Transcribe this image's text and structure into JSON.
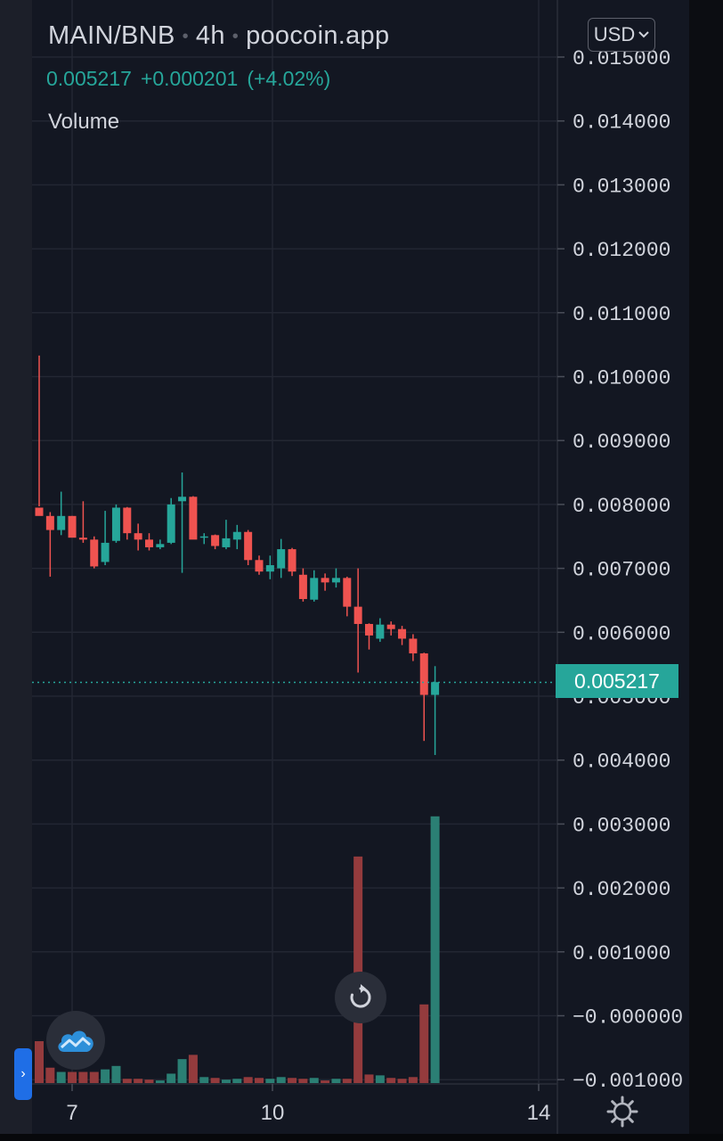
{
  "header": {
    "pair": "MAIN/BNB",
    "interval": "4h",
    "source": "poocoin.app",
    "last": "0.005217",
    "change": "+0.000201",
    "change_pct": "(+4.02%)",
    "indicator": "Volume"
  },
  "currency_button": "USD",
  "last_price_label": "0.005217",
  "colors": {
    "up": "#26a69a",
    "down": "#ef5350",
    "up_volume": "#2b7f74",
    "down_volume": "#943b3d",
    "background": "#131722",
    "grid": "#2a2e39",
    "axis_text": "#d1d4dc"
  },
  "icons": {
    "currency_chevron": "chevron-down-icon",
    "reset": "reset-chart-icon",
    "logo": "cloud-chart-logo-icon",
    "side_tab": "chevron-right-icon",
    "settings": "gear-icon"
  },
  "chart_data": {
    "type": "candlestick",
    "series_name": "MAIN/BNB",
    "price_ticks": [
      "0.015000",
      "0.014000",
      "0.013000",
      "0.012000",
      "0.011000",
      "0.010000",
      "0.009000",
      "0.008000",
      "0.007000",
      "0.006000",
      "0.005000",
      "0.004000",
      "0.003000",
      "0.002000",
      "0.001000",
      "−0.000000",
      "−0.001000"
    ],
    "x_ticks": [
      "7",
      "10",
      "14"
    ],
    "ylim": [
      -0.001,
      0.015
    ],
    "last_price": 0.005217,
    "grid": true,
    "candles": [
      {
        "o": 0.00795,
        "h": 0.01033,
        "l": 0.00797,
        "c": 0.00782
      },
      {
        "o": 0.00782,
        "h": 0.00788,
        "l": 0.00687,
        "c": 0.0076
      },
      {
        "o": 0.0076,
        "h": 0.0082,
        "l": 0.00752,
        "c": 0.00782
      },
      {
        "o": 0.00782,
        "h": 0.00782,
        "l": 0.00752,
        "c": 0.00748
      },
      {
        "o": 0.00748,
        "h": 0.00805,
        "l": 0.0074,
        "c": 0.00745
      },
      {
        "o": 0.00745,
        "h": 0.0075,
        "l": 0.007,
        "c": 0.00703
      },
      {
        "o": 0.0071,
        "h": 0.0079,
        "l": 0.00705,
        "c": 0.0074
      },
      {
        "o": 0.00743,
        "h": 0.008,
        "l": 0.0074,
        "c": 0.00795
      },
      {
        "o": 0.00795,
        "h": 0.00796,
        "l": 0.00745,
        "c": 0.00755
      },
      {
        "o": 0.00755,
        "h": 0.0077,
        "l": 0.00728,
        "c": 0.00745
      },
      {
        "o": 0.00745,
        "h": 0.00755,
        "l": 0.00728,
        "c": 0.00733
      },
      {
        "o": 0.00733,
        "h": 0.00745,
        "l": 0.0073,
        "c": 0.00738
      },
      {
        "o": 0.0074,
        "h": 0.0081,
        "l": 0.00738,
        "c": 0.008
      },
      {
        "o": 0.00805,
        "h": 0.0085,
        "l": 0.00693,
        "c": 0.00812
      },
      {
        "o": 0.00812,
        "h": 0.00813,
        "l": 0.00748,
        "c": 0.00745
      },
      {
        "o": 0.00748,
        "h": 0.00755,
        "l": 0.00738,
        "c": 0.0075
      },
      {
        "o": 0.00752,
        "h": 0.00753,
        "l": 0.0073,
        "c": 0.00735
      },
      {
        "o": 0.00733,
        "h": 0.00776,
        "l": 0.0073,
        "c": 0.00747
      },
      {
        "o": 0.00745,
        "h": 0.00768,
        "l": 0.0073,
        "c": 0.00757
      },
      {
        "o": 0.00757,
        "h": 0.0076,
        "l": 0.00705,
        "c": 0.00713
      },
      {
        "o": 0.00713,
        "h": 0.0072,
        "l": 0.0069,
        "c": 0.00695
      },
      {
        "o": 0.00695,
        "h": 0.0072,
        "l": 0.00683,
        "c": 0.00705
      },
      {
        "o": 0.007,
        "h": 0.00746,
        "l": 0.00685,
        "c": 0.0073
      },
      {
        "o": 0.0073,
        "h": 0.00732,
        "l": 0.00688,
        "c": 0.00695
      },
      {
        "o": 0.0069,
        "h": 0.007,
        "l": 0.00648,
        "c": 0.00652
      },
      {
        "o": 0.00651,
        "h": 0.00697,
        "l": 0.00648,
        "c": 0.00685
      },
      {
        "o": 0.00685,
        "h": 0.00692,
        "l": 0.00665,
        "c": 0.00678
      },
      {
        "o": 0.00678,
        "h": 0.007,
        "l": 0.0067,
        "c": 0.00685
      },
      {
        "o": 0.00685,
        "h": 0.00687,
        "l": 0.00625,
        "c": 0.0064
      },
      {
        "o": 0.0064,
        "h": 0.007,
        "l": 0.00537,
        "c": 0.00613
      },
      {
        "o": 0.00613,
        "h": 0.00614,
        "l": 0.00573,
        "c": 0.00595
      },
      {
        "o": 0.0059,
        "h": 0.00622,
        "l": 0.00585,
        "c": 0.00612
      },
      {
        "o": 0.00612,
        "h": 0.00617,
        "l": 0.00595,
        "c": 0.00605
      },
      {
        "o": 0.00605,
        "h": 0.0061,
        "l": 0.0058,
        "c": 0.0059
      },
      {
        "o": 0.0059,
        "h": 0.00597,
        "l": 0.00555,
        "c": 0.00567
      },
      {
        "o": 0.00567,
        "h": 0.00568,
        "l": 0.0043,
        "c": 0.00502
      },
      {
        "o": 0.00502,
        "h": 0.00547,
        "l": 0.00408,
        "c": 0.00522
      }
    ],
    "volumes": [
      0.00049,
      0.00018,
      0.00013,
      0.00013,
      0.00013,
      0.00013,
      0.00016,
      0.0002,
      5e-05,
      5e-05,
      4e-05,
      3e-05,
      0.00011,
      0.00028,
      0.00033,
      7e-05,
      6e-05,
      4e-05,
      5e-05,
      7e-05,
      6e-05,
      5e-05,
      7e-05,
      6e-05,
      5e-05,
      6e-05,
      3e-05,
      5e-05,
      5e-05,
      0.00265,
      0.0001,
      9e-05,
      6e-05,
      5e-05,
      7e-05,
      0.00092,
      0.00312
    ]
  }
}
